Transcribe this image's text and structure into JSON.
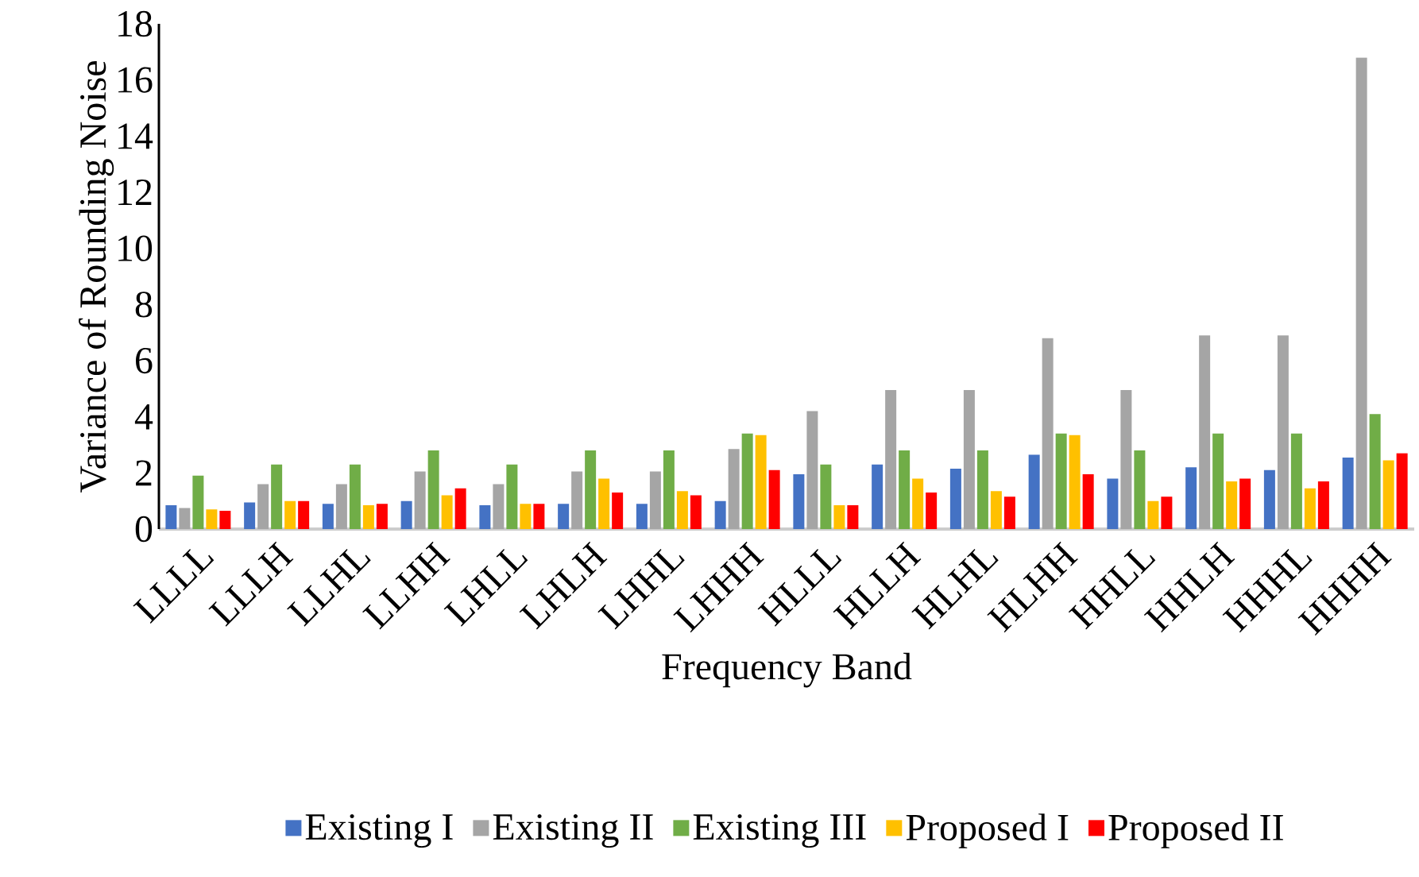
{
  "chart_data": {
    "type": "bar",
    "xlabel": "Frequency Band",
    "ylabel": "Variance of Rounding Noise",
    "categories": [
      "LLLL",
      "LLLH",
      "LLHL",
      "LLHH",
      "LHLL",
      "LHLH",
      "LHHL",
      "LHHH",
      "HLLL",
      "HLLH",
      "HLHL",
      "HLHH",
      "HHLL",
      "HHLH",
      "HHHL",
      "HHHH"
    ],
    "series": [
      {
        "name": "Existing I",
        "color": "#4472c4",
        "values": [
          0.85,
          0.95,
          0.9,
          1.0,
          0.85,
          0.9,
          0.9,
          1.0,
          1.95,
          2.3,
          2.15,
          2.65,
          1.8,
          2.2,
          2.1,
          2.55
        ]
      },
      {
        "name": "Existing II",
        "color": "#a5a5a5",
        "values": [
          0.75,
          1.6,
          1.6,
          2.05,
          1.6,
          2.05,
          2.05,
          2.85,
          4.2,
          4.95,
          4.95,
          6.8,
          4.95,
          6.9,
          6.9,
          16.8
        ]
      },
      {
        "name": "Existing III",
        "color": "#70ad47",
        "values": [
          1.9,
          2.3,
          2.3,
          2.8,
          2.3,
          2.8,
          2.8,
          3.4,
          2.3,
          2.8,
          2.8,
          3.4,
          2.8,
          3.4,
          3.4,
          4.1
        ]
      },
      {
        "name": "Proposed I",
        "color": "#ffc000",
        "values": [
          0.7,
          1.0,
          0.85,
          1.2,
          0.9,
          1.8,
          1.35,
          3.35,
          0.85,
          1.8,
          1.35,
          3.35,
          1.0,
          1.7,
          1.45,
          2.45
        ]
      },
      {
        "name": "Proposed II",
        "color": "#ff0000",
        "values": [
          0.65,
          1.0,
          0.9,
          1.45,
          0.9,
          1.3,
          1.2,
          2.1,
          0.85,
          1.3,
          1.15,
          1.95,
          1.15,
          1.8,
          1.7,
          2.7
        ]
      }
    ],
    "ylim": [
      0,
      18
    ],
    "yticks": [
      0,
      2,
      4,
      6,
      8,
      10,
      12,
      14,
      16,
      18
    ],
    "grid": false,
    "legend": "bottom"
  }
}
